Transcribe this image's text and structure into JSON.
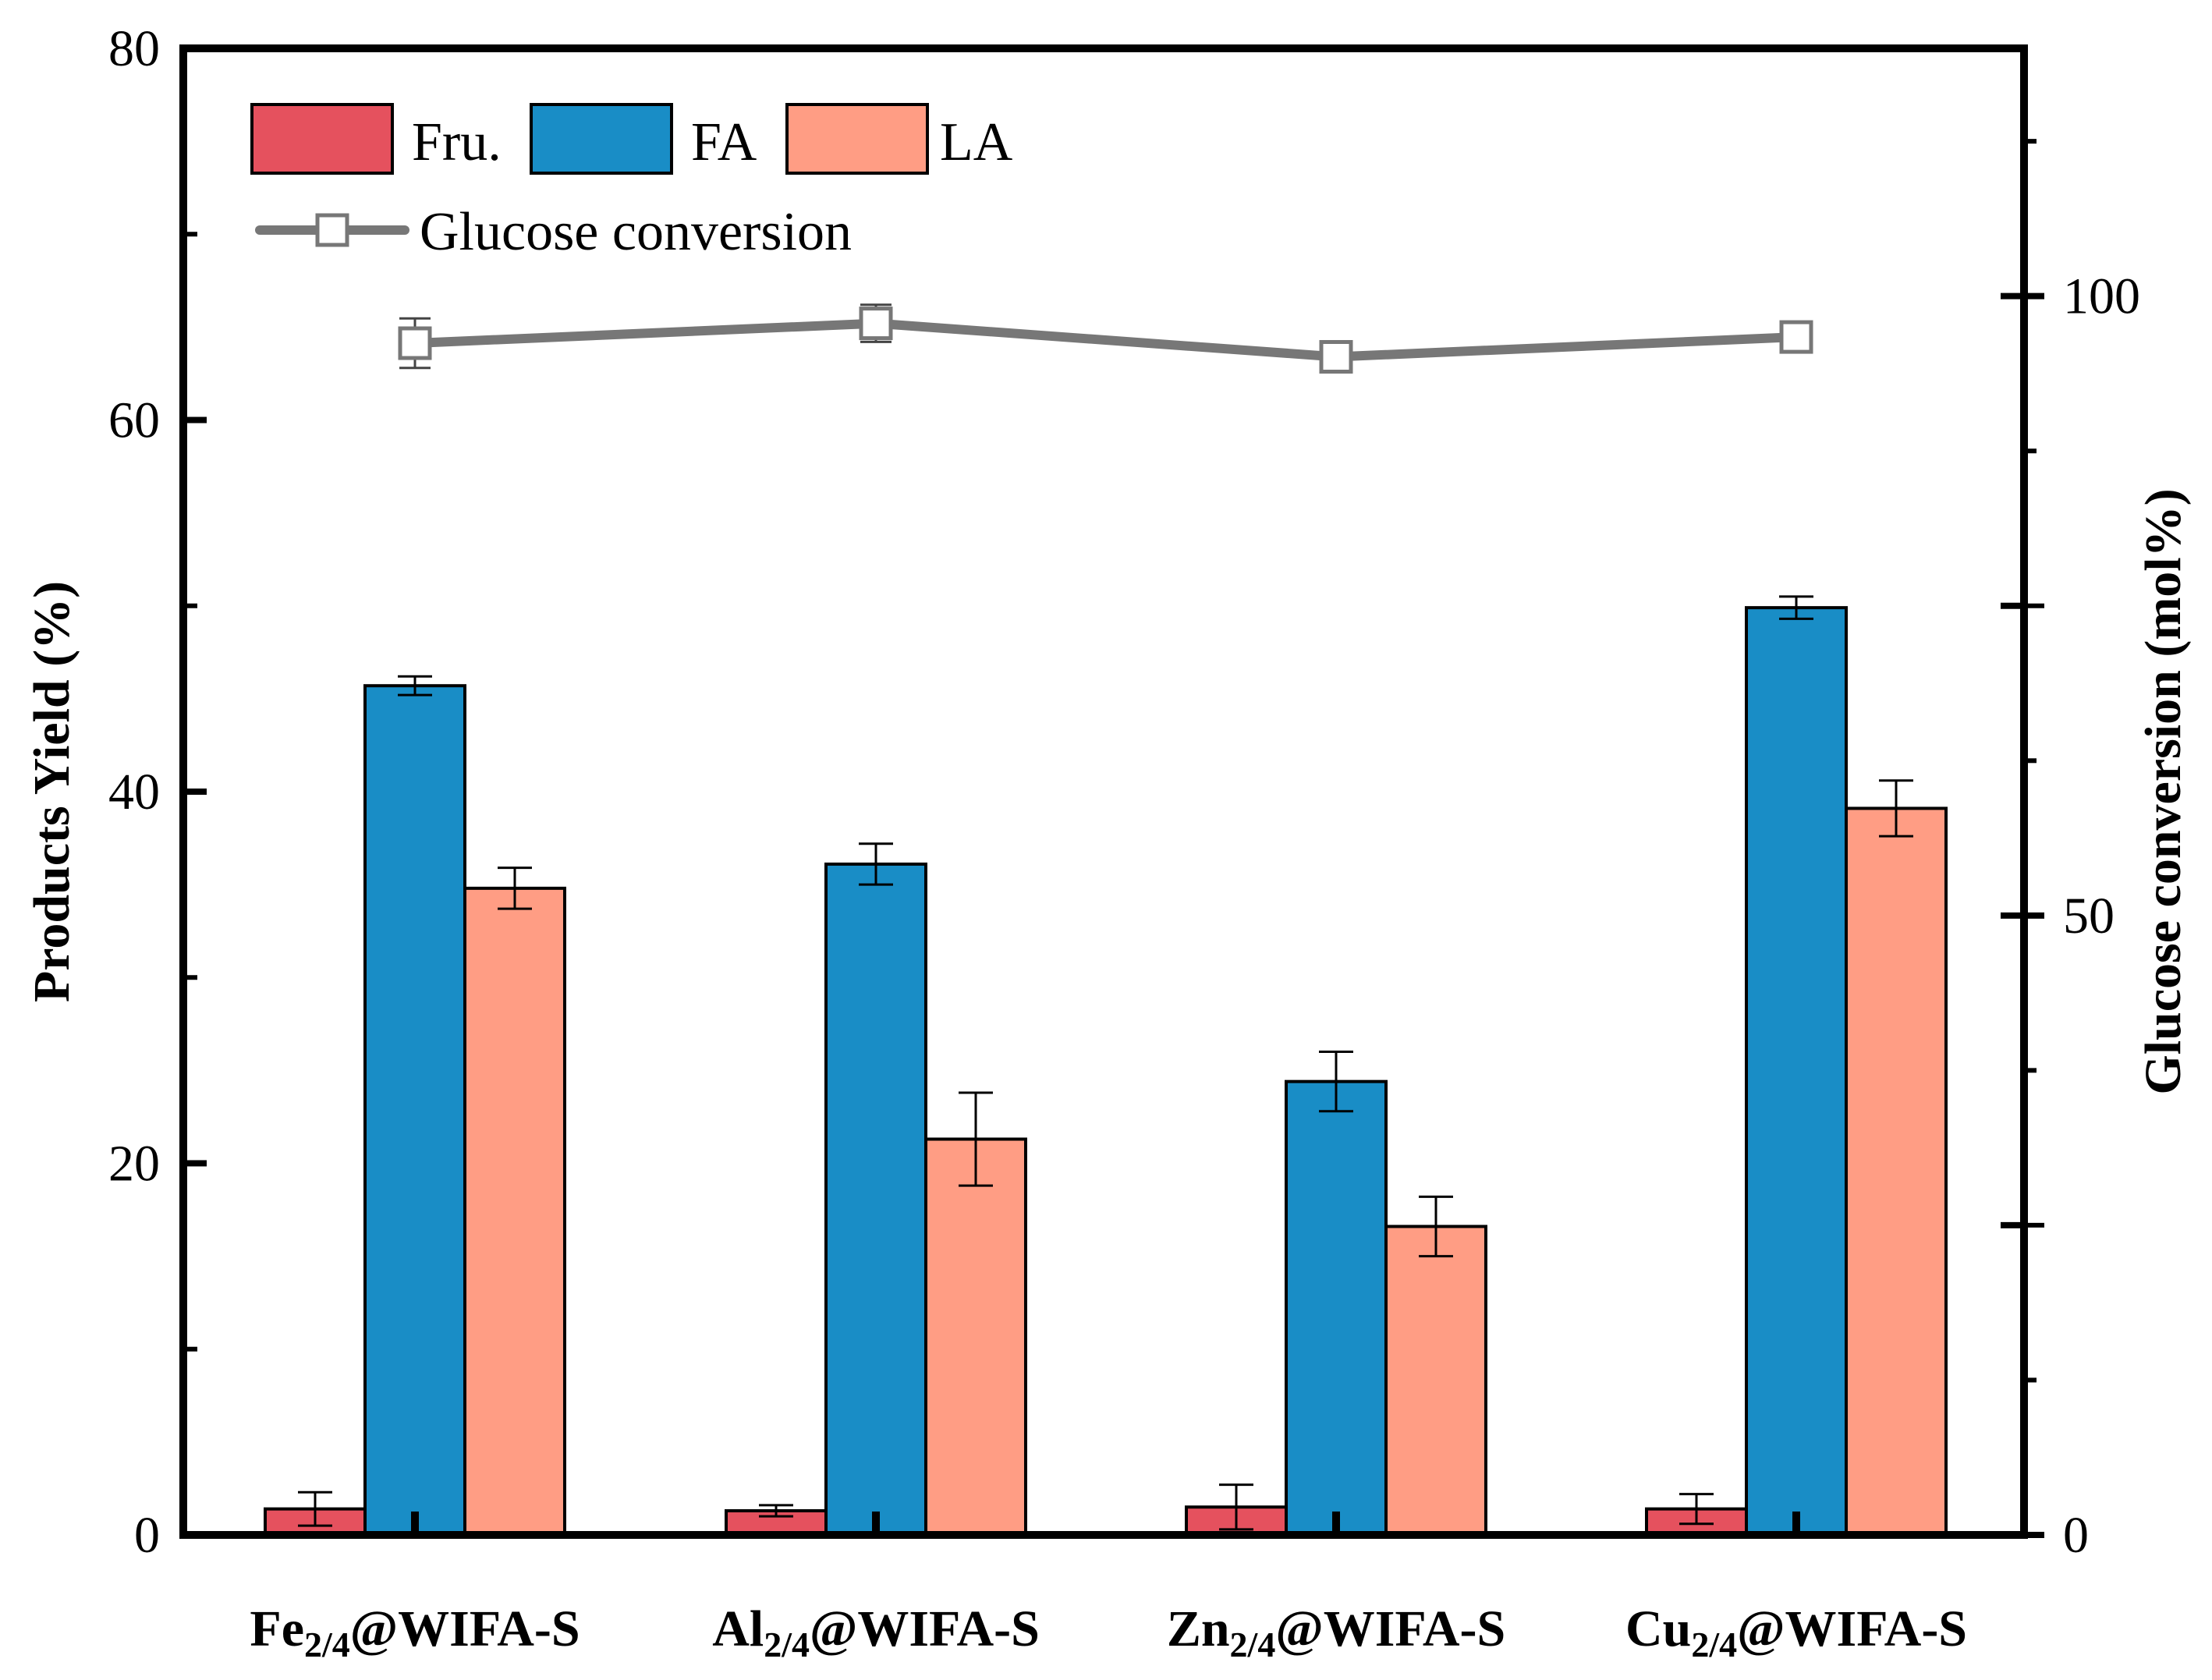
{
  "colors": {
    "fru": "#E5515E",
    "fa": "#198DC6",
    "la": "#FF9D84",
    "conversion": "#777777",
    "axis": "#000000"
  },
  "chart_data": {
    "type": "bar",
    "categories": [
      {
        "base": "Fe",
        "sub": "2/4",
        "suffix": "@WIFA-S"
      },
      {
        "base": "Al",
        "sub": "2/4",
        "suffix": "@WIFA-S"
      },
      {
        "base": "Zn",
        "sub": "2/4",
        "suffix": "@WIFA-S"
      },
      {
        "base": "Cu",
        "sub": "2/4",
        "suffix": "@WIFA-S"
      }
    ],
    "series": [
      {
        "name": "Fru.",
        "key": "fru",
        "values": [
          1.4,
          1.3,
          1.5,
          1.4
        ],
        "errors": [
          0.9,
          0.3,
          1.2,
          0.8
        ]
      },
      {
        "name": "FA",
        "key": "fa",
        "values": [
          45.7,
          36.1,
          24.4,
          49.9
        ],
        "errors": [
          0.5,
          1.1,
          1.6,
          0.6
        ]
      },
      {
        "name": "LA",
        "key": "la",
        "values": [
          34.8,
          21.3,
          16.6,
          39.1
        ],
        "errors": [
          1.1,
          2.5,
          1.6,
          1.5
        ]
      }
    ],
    "line_series": {
      "name": "Glucose conversion",
      "axis": "right",
      "values": [
        96.2,
        97.8,
        95.1,
        96.7
      ],
      "errors": [
        2.0,
        1.5,
        0.9,
        1.2
      ]
    },
    "ylabel": "Products Yield (%)",
    "y2label": "Glucose conversion (mol%)",
    "ylim": [
      0,
      80
    ],
    "y2lim": [
      0,
      120
    ],
    "yticks": [
      "0",
      "20",
      "40",
      "60",
      "80"
    ],
    "y2ticks": [
      "0",
      "50",
      "100"
    ],
    "legend": {
      "bars": [
        "Fru.",
        "FA",
        "LA"
      ],
      "line": "Glucose conversion",
      "position": "top-left"
    },
    "grid": false
  }
}
